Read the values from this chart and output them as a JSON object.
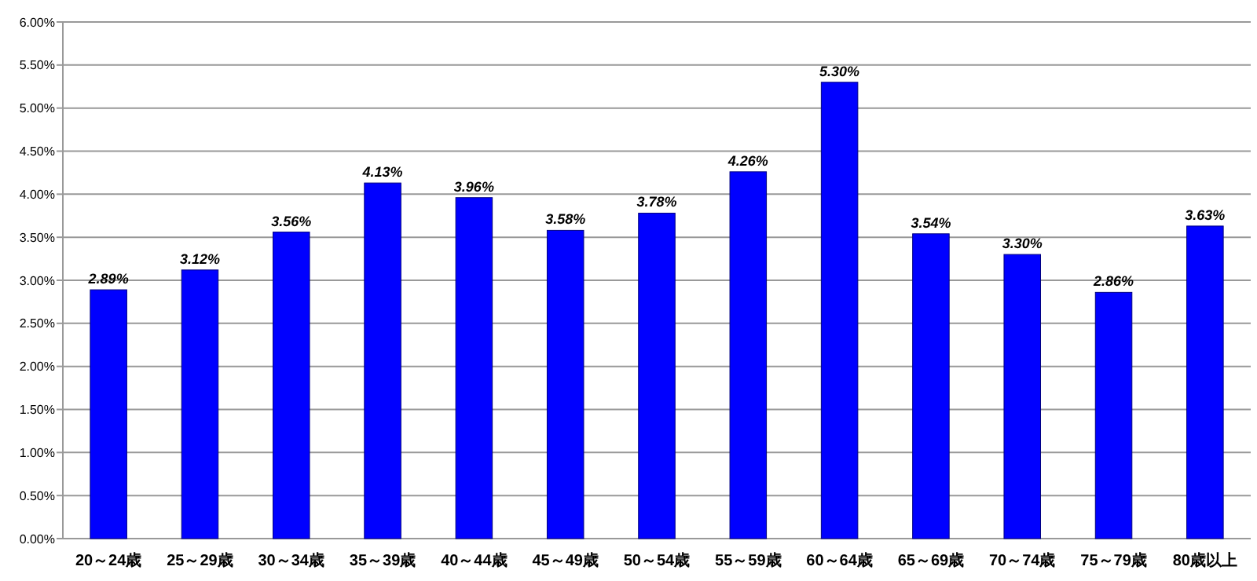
{
  "chart_data": {
    "type": "bar",
    "categories": [
      "20～24歳",
      "25～29歳",
      "30～34歳",
      "35～39歳",
      "40～44歳",
      "45～49歳",
      "50～54歳",
      "55～59歳",
      "60～64歳",
      "65～69歳",
      "70～74歳",
      "75～79歳",
      "80歳以上"
    ],
    "values": [
      2.89,
      3.12,
      3.56,
      4.13,
      3.96,
      3.58,
      3.78,
      4.26,
      5.3,
      3.54,
      3.3,
      2.86,
      3.63
    ],
    "value_labels": [
      "2.89%",
      "3.12%",
      "3.56%",
      "4.13%",
      "3.96%",
      "3.58%",
      "3.78%",
      "4.26%",
      "5.30%",
      "3.54%",
      "3.30%",
      "2.86%",
      "3.63%"
    ],
    "color": "#0000ff",
    "ylim": [
      0,
      6
    ],
    "yticks": [
      {
        "value": 0,
        "label": "0.00%"
      },
      {
        "value": 0.5,
        "label": "0.50%"
      },
      {
        "value": 1,
        "label": "1.00%"
      },
      {
        "value": 1.5,
        "label": "1.50%"
      },
      {
        "value": 2,
        "label": "2.00%"
      },
      {
        "value": 2.5,
        "label": "2.50%"
      },
      {
        "value": 3,
        "label": "3.00%"
      },
      {
        "value": 3.5,
        "label": "3.50%"
      },
      {
        "value": 4,
        "label": "4.00%"
      },
      {
        "value": 4.5,
        "label": "4.50%"
      },
      {
        "value": 5,
        "label": "5.00%"
      },
      {
        "value": 5.5,
        "label": "5.50%"
      },
      {
        "value": 6,
        "label": "6.00%"
      }
    ],
    "grid": "y"
  }
}
